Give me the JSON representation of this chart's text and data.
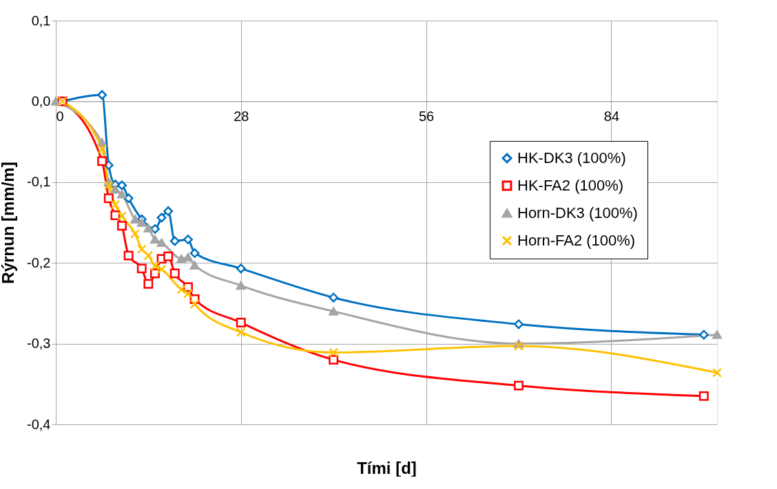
{
  "chart_data": {
    "type": "line",
    "xlabel": "Tími [d]",
    "ylabel": "Rýrnun [mm/m]",
    "xlim": [
      0,
      100
    ],
    "xticks": [
      0,
      28,
      56,
      84
    ],
    "ylim": [
      -0.4,
      0.1
    ],
    "yticks": [
      {
        "value": 0.1,
        "label": "0,1"
      },
      {
        "value": 0,
        "label": "0,0"
      },
      {
        "value": -0.1,
        "label": "-0,1"
      },
      {
        "value": -0.2,
        "label": "-0,2"
      },
      {
        "value": -0.3,
        "label": "-0,3"
      },
      {
        "value": -0.4,
        "label": "-0,4"
      }
    ],
    "grid": true,
    "legend": "right",
    "line_style": "solid",
    "series": [
      {
        "name": "HK-DK3 (100%)",
        "color": "#0070c0",
        "marker": "diamond",
        "x": [
          1,
          7,
          8,
          9,
          10,
          11,
          13,
          15,
          16,
          17,
          18,
          20,
          21,
          28,
          42,
          70,
          98
        ],
        "values": [
          0,
          0.008,
          -0.079,
          -0.103,
          -0.104,
          -0.12,
          -0.146,
          -0.158,
          -0.144,
          -0.136,
          -0.173,
          -0.171,
          -0.188,
          -0.207,
          -0.243,
          -0.276,
          -0.289
        ]
      },
      {
        "name": "HK-FA2 (100%)",
        "color": "#ff0000",
        "marker": "square",
        "x": [
          1,
          7,
          8,
          9,
          10,
          11,
          13,
          14,
          15,
          16,
          17,
          18,
          20,
          21,
          28,
          42,
          70,
          98
        ],
        "values": [
          0,
          -0.074,
          -0.12,
          -0.141,
          -0.154,
          -0.191,
          -0.207,
          -0.226,
          -0.213,
          -0.195,
          -0.192,
          -0.213,
          -0.23,
          -0.245,
          -0.274,
          -0.32,
          -0.352,
          -0.365
        ]
      },
      {
        "name": "Horn-DK3 (100%)",
        "color": "#a5a5a5",
        "marker": "triangle",
        "x": [
          0,
          7,
          8,
          9,
          10,
          12,
          13,
          14,
          15,
          16,
          19,
          20,
          21,
          28,
          42,
          70,
          100
        ],
        "values": [
          0,
          -0.051,
          -0.1,
          -0.109,
          -0.115,
          -0.146,
          -0.15,
          -0.157,
          -0.171,
          -0.175,
          -0.195,
          -0.193,
          -0.203,
          -0.228,
          -0.26,
          -0.3,
          -0.289
        ]
      },
      {
        "name": "Horn-FA2 (100%)",
        "color": "#ffc000",
        "marker": "cross",
        "x": [
          1,
          7,
          8,
          9,
          10,
          12,
          13,
          14,
          15,
          16,
          19,
          20,
          21,
          28,
          42,
          70,
          100
        ],
        "values": [
          0,
          -0.059,
          -0.104,
          -0.128,
          -0.142,
          -0.164,
          -0.183,
          -0.191,
          -0.204,
          -0.208,
          -0.233,
          -0.238,
          -0.251,
          -0.286,
          -0.311,
          -0.303,
          -0.336
        ]
      }
    ]
  }
}
